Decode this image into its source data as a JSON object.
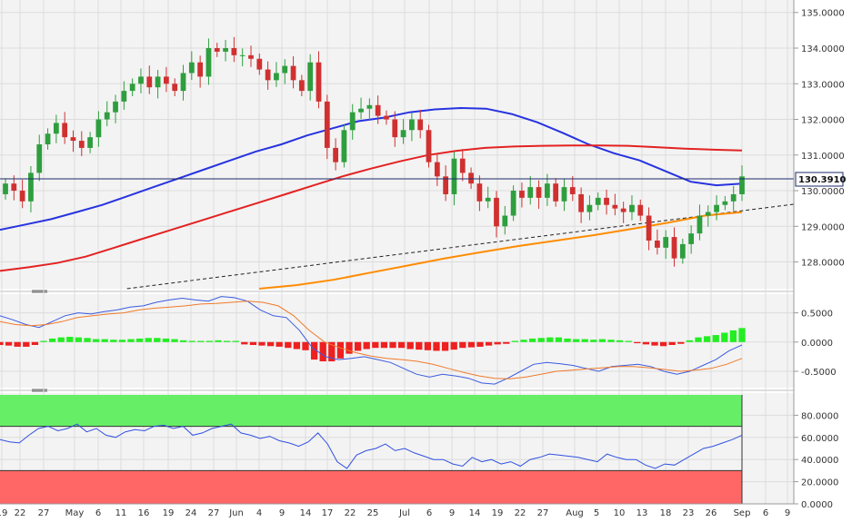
{
  "colors": {
    "background": "#f3f3f3",
    "grid": "#dcdcdc",
    "bull_candle": "#2e9e3e",
    "bear_candle": "#d03030",
    "sma_fast": "#2733e0",
    "sma_mid": "#e32222",
    "sma_slow": "#ff8c00",
    "trendline": "#222222",
    "macd_line": "#3a5be0",
    "signal_line": "#f07a2a",
    "hist_pos": "#22ee22",
    "hist_neg": "#ee2020",
    "rsi_line": "#3050e0",
    "overbought_zone": "#66ee66",
    "oversold_zone": "#ff6666"
  },
  "chart_data": [
    {
      "type": "candlestick",
      "panel": "price",
      "y_ticks": [
        "135.0000",
        "134.0000",
        "133.0000",
        "132.0000",
        "131.0000",
        "130.0000",
        "129.0000",
        "128.0000"
      ],
      "ylim": [
        127.25,
        135.35
      ],
      "last_price_label": "130.3910",
      "x_labels": [
        "19",
        "22",
        "27",
        "May",
        "6",
        "11",
        "16",
        "19",
        "24",
        "27",
        "Jun",
        "4",
        "9",
        "14",
        "17",
        "22",
        "25",
        "Jul",
        "6",
        "9",
        "14",
        "19",
        "22",
        "27",
        "Aug",
        "5",
        "10",
        "13",
        "18",
        "23",
        "26",
        "Sep",
        "6",
        "9"
      ],
      "closes": [
        130.2,
        130.0,
        129.7,
        130.5,
        131.3,
        131.6,
        131.9,
        131.5,
        131.4,
        131.2,
        131.5,
        132.0,
        132.2,
        132.5,
        132.8,
        133.0,
        133.2,
        132.9,
        133.2,
        133.0,
        132.8,
        133.3,
        133.6,
        133.2,
        134.0,
        133.9,
        134.0,
        133.8,
        133.8,
        133.7,
        133.4,
        133.1,
        133.3,
        133.5,
        133.1,
        132.8,
        133.6,
        132.5,
        131.2,
        130.8,
        131.7,
        132.2,
        132.3,
        132.4,
        132.1,
        132.0,
        131.5,
        131.7,
        132.0,
        131.7,
        130.8,
        130.4,
        129.9,
        130.9,
        130.5,
        130.2,
        129.7,
        129.8,
        129.0,
        129.3,
        130.0,
        129.8,
        130.1,
        129.8,
        130.2,
        129.7,
        130.1,
        129.9,
        129.4,
        129.6,
        129.8,
        129.6,
        129.5,
        129.4,
        129.6,
        129.3,
        128.6,
        128.4,
        128.7,
        128.1,
        128.5,
        128.8,
        129.3,
        129.4,
        129.6,
        129.7,
        129.9,
        130.4
      ],
      "sma_fast_label": "",
      "sma_fast": [
        128.9,
        129.05,
        129.2,
        129.4,
        129.6,
        129.85,
        130.1,
        130.35,
        130.6,
        130.85,
        131.1,
        131.3,
        131.55,
        131.75,
        131.95,
        132.05,
        132.2,
        132.28,
        132.32,
        132.3,
        132.15,
        131.92,
        131.62,
        131.3,
        131.05,
        130.85,
        130.55,
        130.25,
        130.15,
        130.2
      ],
      "sma_mid": [
        127.75,
        127.85,
        127.97,
        128.15,
        128.4,
        128.65,
        128.9,
        129.15,
        129.4,
        129.65,
        129.9,
        130.15,
        130.4,
        130.62,
        130.82,
        131.0,
        131.12,
        131.2,
        131.24,
        131.26,
        131.27,
        131.27,
        131.26,
        131.22,
        131.18,
        131.15,
        131.13
      ],
      "sma_slow": [
        127.25,
        127.35,
        127.5,
        127.7,
        127.9,
        128.1,
        128.28,
        128.45,
        128.6,
        128.75,
        128.92,
        129.1,
        129.3,
        129.4
      ],
      "trendline": [
        [
          127.25,
          0.16
        ],
        [
          129.62,
          1.0
        ]
      ]
    },
    {
      "type": "line",
      "panel": "macd",
      "y_ticks": [
        "0.5000",
        "0.0000",
        "-0.5000"
      ],
      "ylim": [
        -0.78,
        0.82
      ],
      "macd": [
        0.45,
        0.38,
        0.3,
        0.25,
        0.35,
        0.45,
        0.5,
        0.48,
        0.52,
        0.55,
        0.6,
        0.62,
        0.68,
        0.72,
        0.75,
        0.72,
        0.7,
        0.78,
        0.76,
        0.7,
        0.55,
        0.45,
        0.42,
        0.2,
        -0.1,
        -0.25,
        -0.3,
        -0.28,
        -0.25,
        -0.3,
        -0.35,
        -0.45,
        -0.55,
        -0.6,
        -0.55,
        -0.58,
        -0.62,
        -0.7,
        -0.72,
        -0.62,
        -0.5,
        -0.38,
        -0.35,
        -0.37,
        -0.4,
        -0.45,
        -0.5,
        -0.42,
        -0.4,
        -0.38,
        -0.42,
        -0.5,
        -0.55,
        -0.5,
        -0.4,
        -0.3,
        -0.15,
        -0.05
      ],
      "signal": [
        0.35,
        0.3,
        0.28,
        0.3,
        0.35,
        0.42,
        0.45,
        0.48,
        0.5,
        0.55,
        0.58,
        0.6,
        0.62,
        0.65,
        0.66,
        0.68,
        0.7,
        0.68,
        0.62,
        0.45,
        0.2,
        0.0,
        -0.1,
        -0.18,
        -0.24,
        -0.28,
        -0.3,
        -0.33,
        -0.38,
        -0.45,
        -0.52,
        -0.58,
        -0.62,
        -0.63,
        -0.6,
        -0.55,
        -0.5,
        -0.48,
        -0.46,
        -0.44,
        -0.42,
        -0.42,
        -0.44,
        -0.47,
        -0.5,
        -0.48,
        -0.45,
        -0.38,
        -0.28
      ],
      "histogram": [
        -0.05,
        -0.06,
        -0.08,
        -0.08,
        -0.05,
        0.02,
        0.06,
        0.08,
        0.09,
        0.08,
        0.07,
        0.05,
        0.05,
        0.04,
        0.04,
        0.05,
        0.06,
        0.07,
        0.07,
        0.06,
        0.05,
        0.03,
        0.02,
        0.02,
        0.02,
        0.03,
        0.02,
        0.02,
        -0.04,
        -0.05,
        -0.06,
        -0.07,
        -0.08,
        -0.1,
        -0.12,
        -0.14,
        -0.3,
        -0.33,
        -0.33,
        -0.28,
        -0.2,
        -0.15,
        -0.12,
        -0.1,
        -0.1,
        -0.1,
        -0.1,
        -0.12,
        -0.13,
        -0.14,
        -0.15,
        -0.15,
        -0.13,
        -0.1,
        -0.09,
        -0.08,
        -0.06,
        -0.04,
        -0.03,
        0.02,
        0.04,
        0.06,
        0.07,
        0.08,
        0.08,
        0.06,
        0.05,
        0.05,
        0.04,
        0.05,
        0.04,
        0.03,
        0.02,
        -0.02,
        -0.04,
        -0.06,
        -0.07,
        -0.05,
        -0.03,
        0.03,
        0.08,
        0.1,
        0.12,
        0.16,
        0.2,
        0.24
      ]
    },
    {
      "type": "line",
      "panel": "rsi",
      "y_ticks": [
        "80.0000",
        "60.0000",
        "40.0000",
        "20.0000",
        "0.0000"
      ],
      "ylim": [
        0,
        100
      ],
      "overbought": 70,
      "oversold": 30,
      "rsi": [
        58,
        56,
        55,
        62,
        68,
        70,
        66,
        68,
        72,
        65,
        68,
        62,
        60,
        65,
        67,
        66,
        70,
        71,
        68,
        70,
        62,
        64,
        68,
        70,
        72,
        64,
        62,
        59,
        61,
        57,
        55,
        52,
        56,
        64,
        54,
        38,
        32,
        44,
        48,
        50,
        54,
        48,
        50,
        46,
        43,
        40,
        40,
        36,
        34,
        42,
        38,
        40,
        36,
        38,
        34,
        40,
        42,
        45,
        44,
        43,
        42,
        40,
        38,
        45,
        42,
        40,
        40,
        35,
        32,
        36,
        35,
        40,
        45,
        50,
        52,
        55,
        58,
        62
      ]
    }
  ]
}
